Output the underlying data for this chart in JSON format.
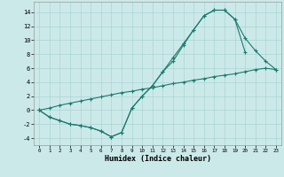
{
  "xlabel": "Humidex (Indice chaleur)",
  "bg_color": "#cce9e9",
  "line_color": "#1a7a6e",
  "grid_color": "#aad4d4",
  "xlim": [
    -0.5,
    23.5
  ],
  "ylim": [
    -5,
    15.5
  ],
  "yticks": [
    -4,
    -2,
    0,
    2,
    4,
    6,
    8,
    10,
    12,
    14
  ],
  "xticks": [
    0,
    1,
    2,
    3,
    4,
    5,
    6,
    7,
    8,
    9,
    10,
    11,
    12,
    13,
    14,
    15,
    16,
    17,
    18,
    19,
    20,
    21,
    22,
    23
  ],
  "line1_x": [
    0,
    1,
    2,
    3,
    4,
    5,
    6,
    7,
    8,
    9,
    10,
    11,
    12,
    13,
    14,
    15,
    16,
    17,
    18,
    19,
    20,
    21,
    22,
    23
  ],
  "line1_y": [
    0,
    -1,
    -1.5,
    -2,
    -2.2,
    -2.5,
    -3,
    -3.8,
    -3.2,
    0.3,
    2.0,
    3.5,
    5.5,
    7.5,
    9.5,
    11.5,
    13.5,
    14.3,
    14.3,
    13.0,
    10.3,
    8.5,
    7.0,
    5.8
  ],
  "line2_x": [
    0,
    1,
    2,
    3,
    4,
    5,
    6,
    7,
    8,
    9,
    10,
    11,
    12,
    13,
    14,
    15,
    16,
    17,
    18,
    19,
    20
  ],
  "line2_y": [
    0,
    -1,
    -1.5,
    -2,
    -2.2,
    -2.5,
    -3,
    -3.8,
    -3.2,
    0.3,
    2.0,
    3.5,
    5.5,
    7.0,
    9.3,
    11.5,
    13.5,
    14.3,
    14.3,
    13.0,
    8.3
  ],
  "line3_x": [
    0,
    1,
    2,
    3,
    4,
    5,
    6,
    7,
    8,
    9,
    10,
    11,
    12,
    13,
    14,
    15,
    16,
    17,
    18,
    19,
    20,
    21,
    22,
    23
  ],
  "line3_y": [
    0,
    0.3,
    0.7,
    1.0,
    1.3,
    1.6,
    1.9,
    2.2,
    2.5,
    2.7,
    3.0,
    3.2,
    3.5,
    3.8,
    4.0,
    4.3,
    4.5,
    4.8,
    5.0,
    5.2,
    5.5,
    5.8,
    6.0,
    5.8
  ]
}
